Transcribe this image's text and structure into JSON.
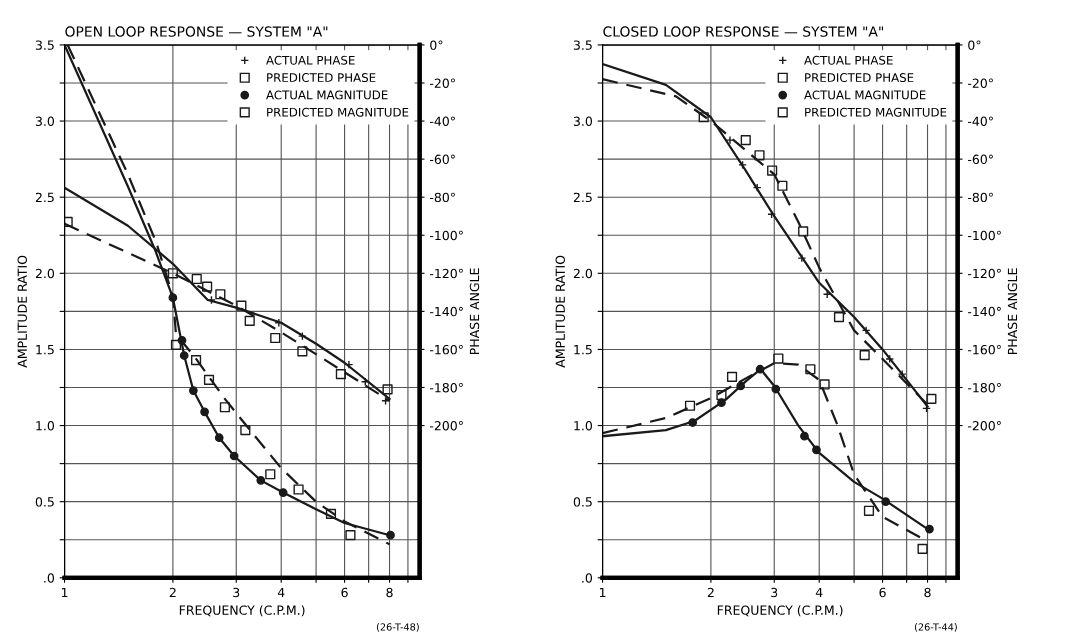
{
  "chart_data": [
    {
      "type": "line",
      "title": "OPEN LOOP RESPONSE — SYSTEM \"A\"",
      "xlabel": "FREQUENCY (C.P.M.)",
      "ylabel": "AMPLITUDE RATIO",
      "y2label": "PHASE ANGLE",
      "annotations": [
        "(26-T-48)"
      ],
      "log": "x",
      "grid": true,
      "legend": "top right",
      "xlim": [
        1,
        9.7
      ],
      "xticks": [
        {
          "value": 1,
          "label": "1"
        },
        {
          "value": 2,
          "label": "2"
        },
        {
          "value": 3,
          "label": "3"
        },
        {
          "value": 4,
          "label": "4"
        },
        {
          "value": 5,
          "label": null
        },
        {
          "value": 6,
          "label": "6"
        },
        {
          "value": 7,
          "label": null
        },
        {
          "value": 8,
          "label": "8"
        },
        {
          "value": 9,
          "label": null
        }
      ],
      "ylim": [
        0,
        3.5
      ],
      "yticks": [
        {
          "value": 0,
          "label": ".0"
        },
        {
          "value": 0.25,
          "label": null
        },
        {
          "value": 0.5,
          "label": "0.5"
        },
        {
          "value": 0.75,
          "label": null
        },
        {
          "value": 1,
          "label": "1.0"
        },
        {
          "value": 1.25,
          "label": null
        },
        {
          "value": 1.5,
          "label": "1.5"
        },
        {
          "value": 1.75,
          "label": null
        },
        {
          "value": 2,
          "label": "2.0"
        },
        {
          "value": 2.25,
          "label": null
        },
        {
          "value": 2.5,
          "label": "2.5"
        },
        {
          "value": 2.75,
          "label": null
        },
        {
          "value": 3,
          "label": "3.0"
        },
        {
          "value": 3.25,
          "label": null
        },
        {
          "value": 3.5,
          "label": "3.5"
        }
      ],
      "y2lim": [
        -280,
        0
      ],
      "y2ticks": [
        {
          "value": 0,
          "label": "0°"
        },
        {
          "value": -20,
          "label": "-20°"
        },
        {
          "value": -40,
          "label": "-40°"
        },
        {
          "value": -60,
          "label": "-60°"
        },
        {
          "value": -80,
          "label": "-80°"
        },
        {
          "value": -100,
          "label": "-100°"
        },
        {
          "value": -120,
          "label": "-120°"
        },
        {
          "value": -140,
          "label": "-140°"
        },
        {
          "value": -160,
          "label": "-160°"
        },
        {
          "value": -180,
          "label": "-180°"
        },
        {
          "value": -200,
          "label": "-200°"
        }
      ],
      "series": [
        {
          "name": "ACTUAL PHASE",
          "type": "scatter",
          "axis": "y2",
          "marker": "cross",
          "color": "#1a1a1a",
          "x": [
            2.56,
            3.94,
            4.58,
            6.17,
            6.85,
            7.8
          ],
          "values": [
            -134,
            -146,
            -153,
            -168,
            -177,
            -187
          ]
        },
        {
          "name": "PREDICTED PHASE",
          "type": "scatter",
          "axis": "y2",
          "marker": "square",
          "color": "#1a1a1a",
          "x": [
            1.02,
            2.0,
            2.33,
            2.49,
            2.71,
            3.1,
            3.27,
            3.85,
            4.58,
            5.86,
            7.9
          ],
          "values": [
            -93,
            -120,
            -123,
            -127,
            -131,
            -137,
            -145,
            -154,
            -161,
            -173,
            -181
          ]
        },
        {
          "name": "ACTUAL MAGNITUDE",
          "type": "scatter",
          "axis": "y",
          "marker": "circle",
          "color": "#1a1a1a",
          "x": [
            2.0,
            2.12,
            2.15,
            2.28,
            2.45,
            2.69,
            2.96,
            3.51,
            4.05,
            8.05
          ],
          "values": [
            1.84,
            1.56,
            1.46,
            1.23,
            1.09,
            0.92,
            0.8,
            0.64,
            0.56,
            0.28
          ]
        },
        {
          "name": "PREDICTED MAGNITUDE",
          "type": "scatter",
          "axis": "y",
          "marker": "square",
          "color": "#1a1a1a",
          "x": [
            2.04,
            2.32,
            2.52,
            2.79,
            3.18,
            3.73,
            4.47,
            5.5,
            6.23
          ],
          "values": [
            1.53,
            1.43,
            1.3,
            1.12,
            0.97,
            0.68,
            0.58,
            0.42,
            0.28
          ]
        },
        {
          "axis": "y2",
          "line_style": "solid",
          "color": "#1a1a1a",
          "x": [
            1,
            1.5,
            2,
            2.5,
            3,
            4,
            5,
            6,
            8
          ],
          "values": [
            -75,
            -95,
            -115,
            -134,
            -138,
            -146,
            -157,
            -167,
            -186
          ]
        },
        {
          "axis": "y2",
          "line_style": "dashed",
          "color": "#1a1a1a",
          "x": [
            1,
            2,
            3,
            4,
            6,
            8
          ],
          "values": [
            -94,
            -120,
            -137,
            -151,
            -172,
            -187
          ]
        },
        {
          "axis": "y",
          "line_style": "solid",
          "color": "#1a1a1a",
          "x": [
            1,
            1.5,
            1.78,
            2,
            2.15,
            2.28,
            2.45,
            2.69,
            2.96,
            3.51,
            4.05,
            5,
            6,
            8
          ],
          "values": [
            3.5,
            2.57,
            2.16,
            1.84,
            1.46,
            1.23,
            1.09,
            0.92,
            0.8,
            0.64,
            0.56,
            0.45,
            0.36,
            0.28
          ]
        },
        {
          "axis": "y",
          "line_style": "dashed",
          "color": "#1a1a1a",
          "x": [
            1.02,
            1.5,
            1.8,
            2,
            2.04,
            2.3,
            2.8,
            3.2,
            4,
            5,
            6,
            8
          ],
          "values": [
            3.5,
            2.65,
            2.2,
            1.85,
            1.6,
            1.45,
            1.17,
            1.0,
            0.72,
            0.5,
            0.37,
            0.22
          ]
        }
      ]
    },
    {
      "type": "line",
      "title": "CLOSED LOOP RESPONSE — SYSTEM \"A\"",
      "xlabel": "FREQUENCY (C.P.M.)",
      "ylabel": "AMPLITUDE RATIO",
      "y2label": "PHASE ANGLE",
      "annotations": [
        "(26-T-44)"
      ],
      "log": "x",
      "grid": true,
      "legend": "top right",
      "xlim": [
        1,
        9.7
      ],
      "xticks": [
        {
          "value": 1,
          "label": "1"
        },
        {
          "value": 2,
          "label": "2"
        },
        {
          "value": 3,
          "label": "3"
        },
        {
          "value": 4,
          "label": "4"
        },
        {
          "value": 5,
          "label": null
        },
        {
          "value": 6,
          "label": "6"
        },
        {
          "value": 7,
          "label": null
        },
        {
          "value": 8,
          "label": "8"
        },
        {
          "value": 9,
          "label": null
        }
      ],
      "ylim": [
        0,
        3.5
      ],
      "yticks": [
        {
          "value": 0,
          "label": ".0"
        },
        {
          "value": 0.25,
          "label": null
        },
        {
          "value": 0.5,
          "label": "0.5"
        },
        {
          "value": 0.75,
          "label": null
        },
        {
          "value": 1,
          "label": "1.0"
        },
        {
          "value": 1.25,
          "label": null
        },
        {
          "value": 1.5,
          "label": "1.5"
        },
        {
          "value": 1.75,
          "label": null
        },
        {
          "value": 2,
          "label": "2.0"
        },
        {
          "value": 2.25,
          "label": null
        },
        {
          "value": 2.5,
          "label": "2.5"
        },
        {
          "value": 2.75,
          "label": null
        },
        {
          "value": 3,
          "label": "3.0"
        },
        {
          "value": 3.25,
          "label": null
        },
        {
          "value": 3.5,
          "label": "3.5"
        }
      ],
      "y2lim": [
        -280,
        0
      ],
      "y2ticks": [
        {
          "value": 0,
          "label": "0°"
        },
        {
          "value": -20,
          "label": "-20°"
        },
        {
          "value": -40,
          "label": "-40°"
        },
        {
          "value": -60,
          "label": "-60°"
        },
        {
          "value": -80,
          "label": "-80°"
        },
        {
          "value": -100,
          "label": "-100°"
        },
        {
          "value": -120,
          "label": "-120°"
        },
        {
          "value": -140,
          "label": "-140°"
        },
        {
          "value": -160,
          "label": "-160°"
        },
        {
          "value": -180,
          "label": "-180°"
        },
        {
          "value": -200,
          "label": "-200°"
        }
      ],
      "series": [
        {
          "name": "ACTUAL PHASE",
          "type": "scatter",
          "axis": "y2",
          "marker": "cross",
          "color": "#1a1a1a",
          "x": [
            2.26,
            2.45,
            2.69,
            2.95,
            3.58,
            4.21,
            5.4,
            6.28,
            6.8,
            7.95
          ],
          "values": [
            -50,
            -63,
            -75,
            -89,
            -112,
            -131,
            -150,
            -165,
            -173,
            -191
          ]
        },
        {
          "name": "PREDICTED PHASE",
          "type": "scatter",
          "axis": "y2",
          "marker": "square",
          "color": "#1a1a1a",
          "x": [
            1.91,
            2.5,
            2.73,
            2.96,
            3.16,
            3.61,
            4.54,
            5.35,
            8.2
          ],
          "values": [
            -38,
            -50,
            -58,
            -66,
            -74,
            -98,
            -143,
            -163,
            -186
          ]
        },
        {
          "name": "ACTUAL MAGNITUDE",
          "type": "scatter",
          "axis": "y",
          "marker": "circle",
          "color": "#1a1a1a",
          "x": [
            1.78,
            2.14,
            2.42,
            2.74,
            3.03,
            3.64,
            3.93,
            6.12,
            8.1
          ],
          "values": [
            1.02,
            1.15,
            1.26,
            1.37,
            1.24,
            0.93,
            0.84,
            0.5,
            0.32
          ]
        },
        {
          "name": "PREDICTED MAGNITUDE",
          "type": "scatter",
          "axis": "y",
          "marker": "square",
          "color": "#1a1a1a",
          "x": [
            1.75,
            2.14,
            2.29,
            3.08,
            3.78,
            4.14,
            5.5,
            7.75
          ],
          "values": [
            1.13,
            1.2,
            1.32,
            1.44,
            1.37,
            1.27,
            0.44,
            0.19
          ]
        },
        {
          "axis": "y2",
          "line_style": "solid",
          "color": "#1a1a1a",
          "x": [
            1,
            1.5,
            2,
            2.5,
            3,
            4,
            5,
            6,
            8
          ],
          "values": [
            -10,
            -21,
            -38,
            -66,
            -90,
            -125,
            -143,
            -160,
            -190
          ]
        },
        {
          "axis": "y2",
          "line_style": "dashed",
          "color": "#1a1a1a",
          "x": [
            1,
            1.6,
            2,
            3,
            3.5,
            4,
            5,
            6,
            8
          ],
          "values": [
            -18,
            -27,
            -40,
            -68,
            -93,
            -117,
            -150,
            -165,
            -189
          ]
        },
        {
          "axis": "y",
          "line_style": "solid",
          "color": "#1a1a1a",
          "x": [
            1,
            1.5,
            1.8,
            2.2,
            2.5,
            2.75,
            3,
            3.5,
            4,
            5,
            6,
            8
          ],
          "values": [
            0.93,
            0.97,
            1.03,
            1.17,
            1.29,
            1.37,
            1.26,
            1.0,
            0.82,
            0.63,
            0.52,
            0.32
          ]
        },
        {
          "axis": "y",
          "line_style": "dashed",
          "color": "#1a1a1a",
          "x": [
            1,
            1.5,
            2,
            2.5,
            3,
            3.5,
            4,
            4.5,
            5,
            6,
            8
          ],
          "values": [
            0.95,
            1.05,
            1.18,
            1.31,
            1.41,
            1.4,
            1.3,
            1.0,
            0.68,
            0.4,
            0.24
          ]
        }
      ]
    }
  ]
}
